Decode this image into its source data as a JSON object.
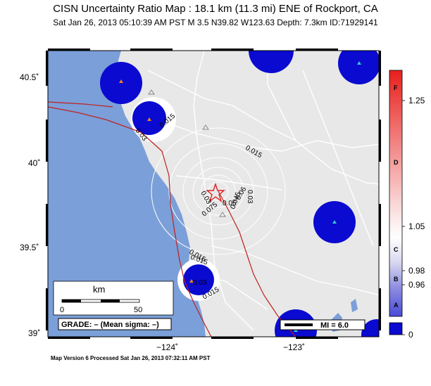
{
  "map": {
    "title": "CISN Uncertainty Ratio Map : 18.1 km (11.3 mi) ENE of Rockport, CA",
    "subtitle": "Sat Jan 26, 2013 05:10:39 AM PST    M 3.5    N39.82 W123.63    Depth: 7.3km    ID:71929141",
    "footer": "Map Version 6 Processed Sat Jan 26, 2013 07:32:11 AM PST",
    "lat_ticks": [
      "40.5˚",
      "40˚",
      "39.5˚",
      "39˚"
    ],
    "lon_ticks": [
      "−124˚",
      "−123˚"
    ],
    "contour_labels": [
      "0.015",
      "0.03",
      "0.015",
      "0.03",
      "0.06",
      "0.075",
      "0.045",
      "0.03",
      "0.06",
      "0.015",
      "0.03",
      "0.015",
      "0.015"
    ],
    "scale_bar": {
      "unit": "km",
      "min": "0",
      "max": "50"
    },
    "grade": "GRADE: – (Mean sigma: –)",
    "mi_legend": "MI = 6.0",
    "colors": {
      "ocean": "#7b9fd8",
      "land": "#e8e8e8",
      "blob": "#0a0ad0",
      "fault": "#c02020",
      "epicenter": "#e02020"
    }
  },
  "colorbar": {
    "letters": [
      "F",
      "D",
      "C",
      "B",
      "A"
    ],
    "values": [
      "1.25",
      "1.05",
      "0.98",
      "0.96",
      "0"
    ]
  }
}
